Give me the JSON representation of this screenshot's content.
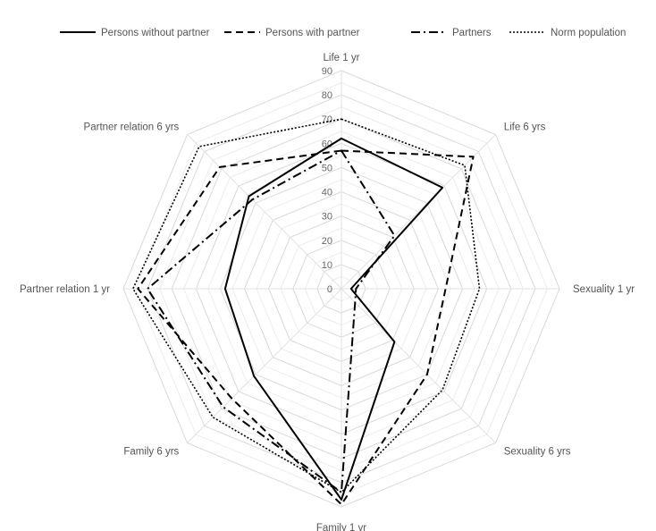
{
  "chart_data": {
    "type": "radar",
    "categories": [
      "Life 1 yr",
      "Life 6 yrs",
      "Sexuality 1 yr",
      "Sexuality 6 yrs",
      "Family 1 yr",
      "Family 6 yrs",
      "Partner relation 1 yr",
      "Partner relation 6 yrs"
    ],
    "r_ticks": [
      0,
      10,
      20,
      30,
      40,
      50,
      60,
      70,
      80,
      90
    ],
    "r_range": [
      0,
      90
    ],
    "grid": true,
    "legend_position": "top",
    "series": [
      {
        "name": "Persons without partner",
        "line_style": "solid",
        "color": "#000000",
        "values": [
          62,
          59,
          4,
          31,
          87,
          51,
          48,
          54
        ]
      },
      {
        "name": "Persons with partner",
        "line_style": "dashed",
        "color": "#000000",
        "values": [
          57,
          77,
          43,
          50,
          89,
          64,
          84,
          71
        ]
      },
      {
        "name": "Partners",
        "line_style": "dashdot",
        "color": "#000000",
        "values": [
          57,
          31,
          6,
          8,
          84,
          69,
          80,
          52
        ]
      },
      {
        "name": "Norm population",
        "line_style": "dotted",
        "color": "#000000",
        "values": [
          70,
          72,
          57,
          59,
          84,
          75,
          86,
          83
        ]
      }
    ]
  }
}
